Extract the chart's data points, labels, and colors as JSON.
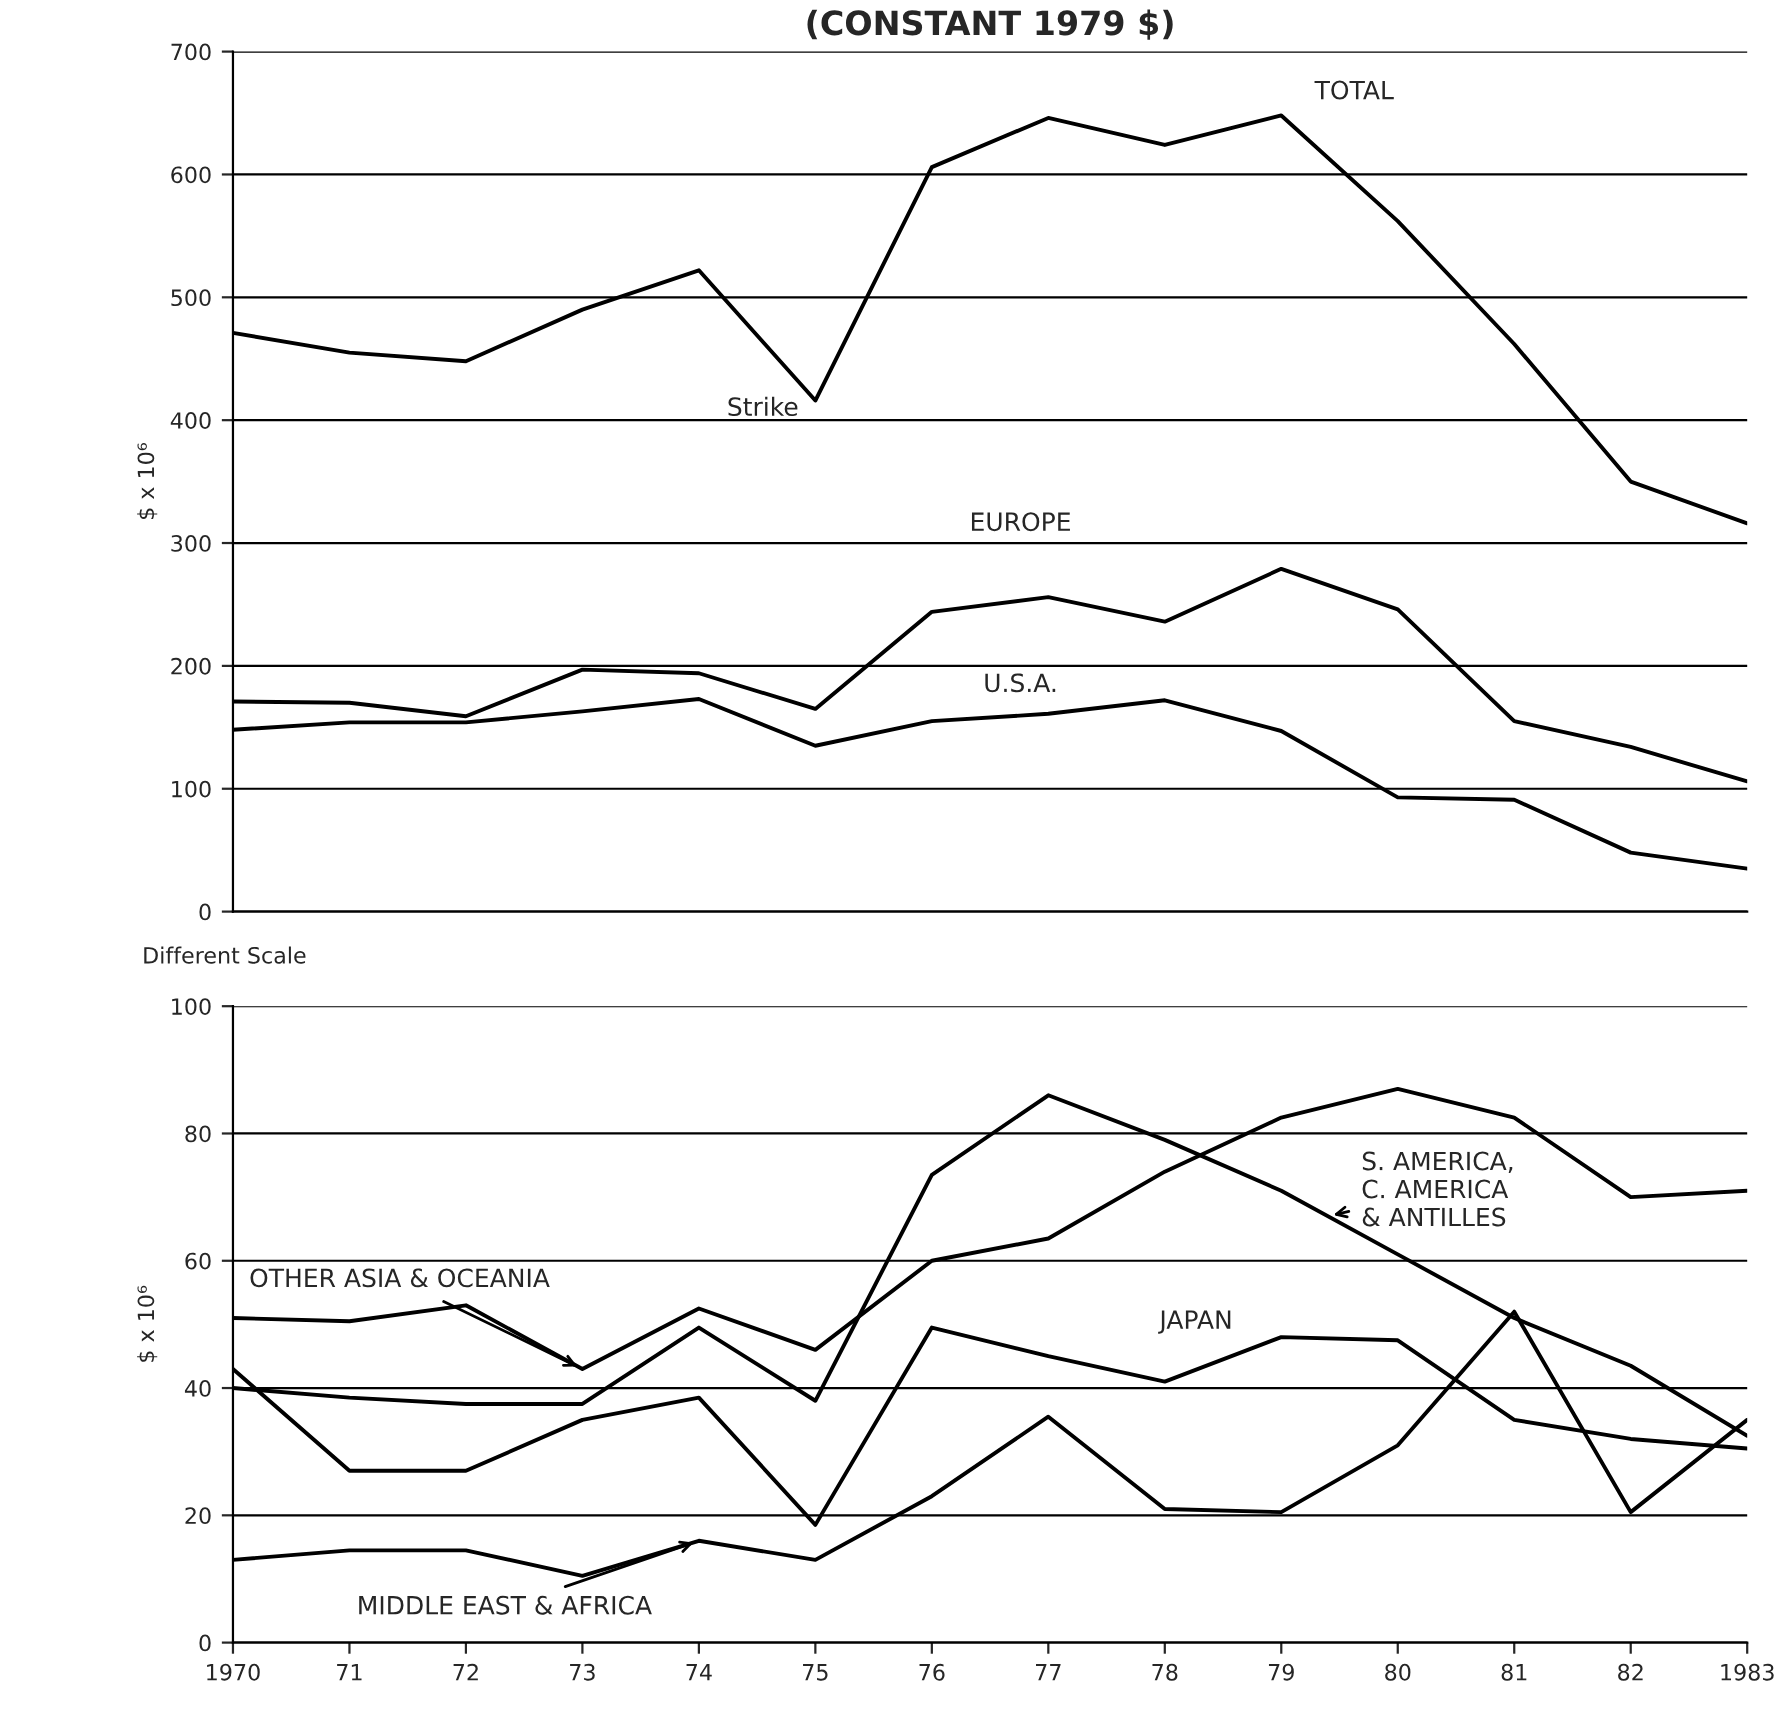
{
  "chart_data": [
    {
      "type": "line",
      "title": "(CONSTANT 1979 $)",
      "ylabel": "$ x 10⁶",
      "x": [
        1970,
        1971,
        1972,
        1973,
        1974,
        1975,
        1976,
        1977,
        1978,
        1979,
        1980,
        1981,
        1982,
        1983
      ],
      "xlim": [
        1970,
        1983
      ],
      "ylim": [
        0,
        700
      ],
      "yticks": [
        0,
        100,
        200,
        300,
        400,
        500,
        600,
        700
      ],
      "tick_labels": "y",
      "grid": "y",
      "legend": false,
      "series": [
        {
          "name": "TOTAL",
          "color": "#000000",
          "values": [
            471,
            455,
            448,
            490,
            522,
            416,
            606,
            646,
            624,
            648,
            562,
            462,
            350,
            316
          ]
        },
        {
          "name": "EUROPE",
          "color": "#000000",
          "values": [
            171,
            170,
            159,
            197,
            194,
            165,
            244,
            256,
            236,
            279,
            246,
            155,
            134,
            106
          ]
        },
        {
          "name": "U.S.A.",
          "color": "#000000",
          "values": [
            148,
            154,
            154,
            163,
            173,
            135,
            155,
            161,
            172,
            147,
            93,
            91,
            48,
            35
          ]
        }
      ],
      "annotations": [
        {
          "text": "Strike",
          "x": 1975,
          "y": 416
        }
      ]
    },
    {
      "type": "line",
      "ylabel": "$ x 10⁶",
      "x": [
        1970,
        1971,
        1972,
        1973,
        1974,
        1975,
        1976,
        1977,
        1978,
        1979,
        1980,
        1981,
        1982,
        1983
      ],
      "xlim": [
        1970,
        1983
      ],
      "ylim": [
        0,
        100
      ],
      "yticks": [
        0,
        20,
        40,
        60,
        80,
        100
      ],
      "xticks": [
        {
          "value": 1970,
          "label": "1970"
        },
        {
          "value": 1971,
          "label": "71"
        },
        {
          "value": 1972,
          "label": "72"
        },
        {
          "value": 1973,
          "label": "73"
        },
        {
          "value": 1974,
          "label": "74"
        },
        {
          "value": 1975,
          "label": "75"
        },
        {
          "value": 1976,
          "label": "76"
        },
        {
          "value": 1977,
          "label": "77"
        },
        {
          "value": 1978,
          "label": "78"
        },
        {
          "value": 1979,
          "label": "79"
        },
        {
          "value": 1980,
          "label": "80"
        },
        {
          "value": 1981,
          "label": "81"
        },
        {
          "value": 1982,
          "label": "82"
        },
        {
          "value": 1983,
          "label": "1983"
        }
      ],
      "grid": "y",
      "legend": false,
      "series": [
        {
          "name": "S. AMERICA,\nC. AMERICA\n& ANTILLES",
          "color": "#000000",
          "values": [
            40,
            38.5,
            37.5,
            37.5,
            49.5,
            38,
            73.5,
            86,
            79,
            71,
            61,
            51,
            43.5,
            32.5
          ]
        },
        {
          "name": "OTHER ASIA & OCEANIA",
          "color": "#000000",
          "values": [
            51,
            50.5,
            53,
            43,
            52.5,
            46,
            60,
            63.5,
            74,
            82.5,
            87,
            82.5,
            70,
            71
          ]
        },
        {
          "name": "JAPAN",
          "color": "#000000",
          "values": [
            43,
            27,
            27,
            35,
            38.5,
            18.5,
            49.5,
            45,
            41,
            48,
            47.5,
            35,
            32,
            30.5
          ]
        },
        {
          "name": "MIDDLE EAST & AFRICA",
          "color": "#000000",
          "values": [
            13,
            14.5,
            14.5,
            10.5,
            16,
            13,
            23,
            35.5,
            21,
            20.5,
            31,
            52,
            20.5,
            35
          ]
        }
      ],
      "annotations": [
        "Different Scale"
      ]
    }
  ]
}
